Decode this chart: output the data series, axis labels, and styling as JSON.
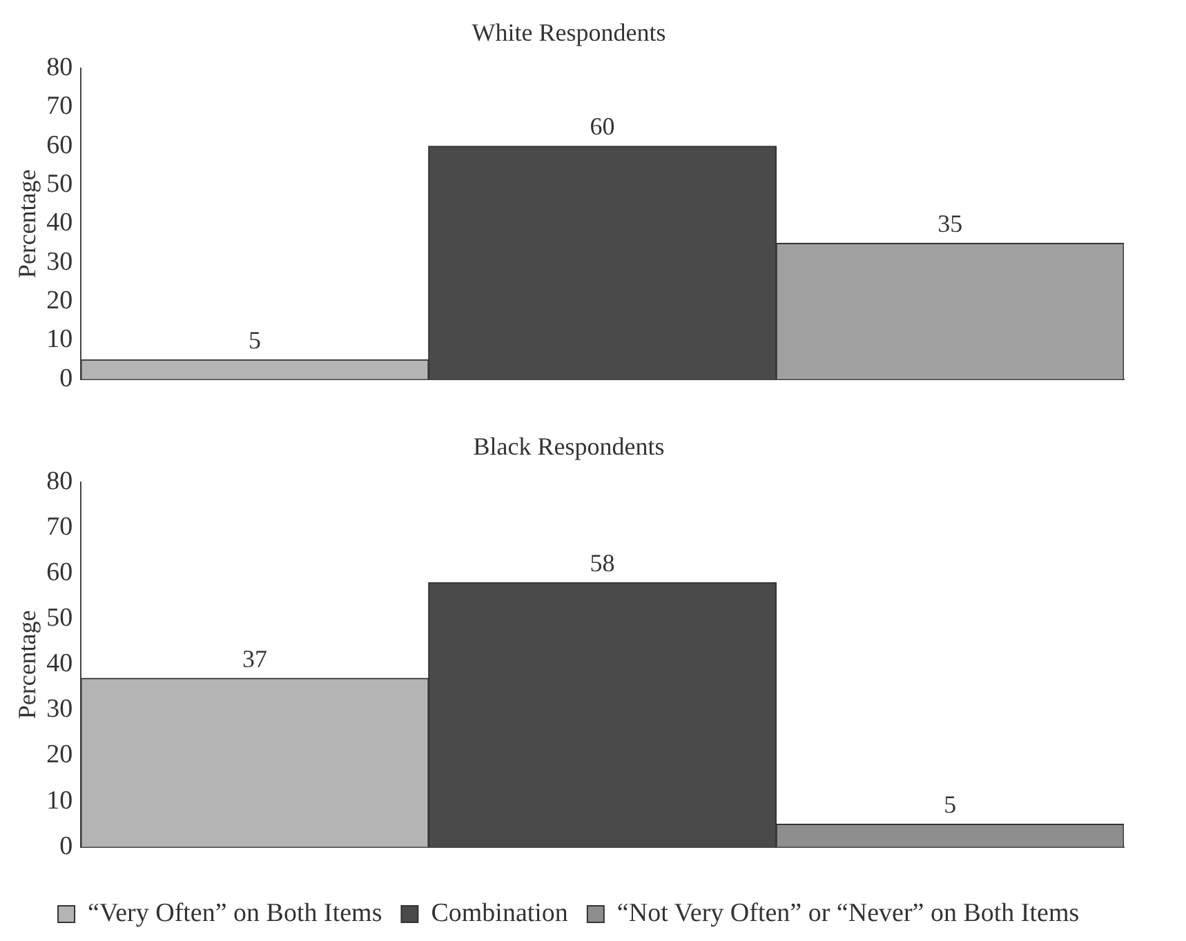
{
  "chart_data": [
    {
      "type": "bar",
      "title": "White Respondents",
      "ylabel": "Percentage",
      "categories": [
        null
      ],
      "series": [
        {
          "color": "#b4b4b4",
          "values": [
            5
          ]
        },
        {
          "color": "#4a4a4a",
          "values": [
            60
          ]
        },
        {
          "color": "#a0a0a0",
          "values": [
            35
          ]
        }
      ],
      "ylim": [
        0,
        80
      ],
      "yticks": [
        0,
        10,
        20,
        30,
        40,
        50,
        60,
        70,
        80
      ],
      "grid": false,
      "legend": false,
      "data_labels": true
    },
    {
      "type": "bar",
      "title": "Black Respondents",
      "ylabel": "Percentage",
      "categories": [
        null
      ],
      "series": [
        {
          "name": "“Very Often” on Both Items",
          "color": "#b4b4b4",
          "values": [
            37
          ]
        },
        {
          "name": "Combination",
          "color": "#4a4a4a",
          "values": [
            58
          ]
        },
        {
          "name": "“Not Very Often” or “Never” on Both Items",
          "color": "#8e8e8e",
          "values": [
            5
          ]
        }
      ],
      "ylim": [
        0,
        80
      ],
      "yticks": [
        0,
        10,
        20,
        30,
        40,
        50,
        60,
        70,
        80
      ],
      "grid": false,
      "legend": "bottom",
      "data_labels": true
    }
  ]
}
